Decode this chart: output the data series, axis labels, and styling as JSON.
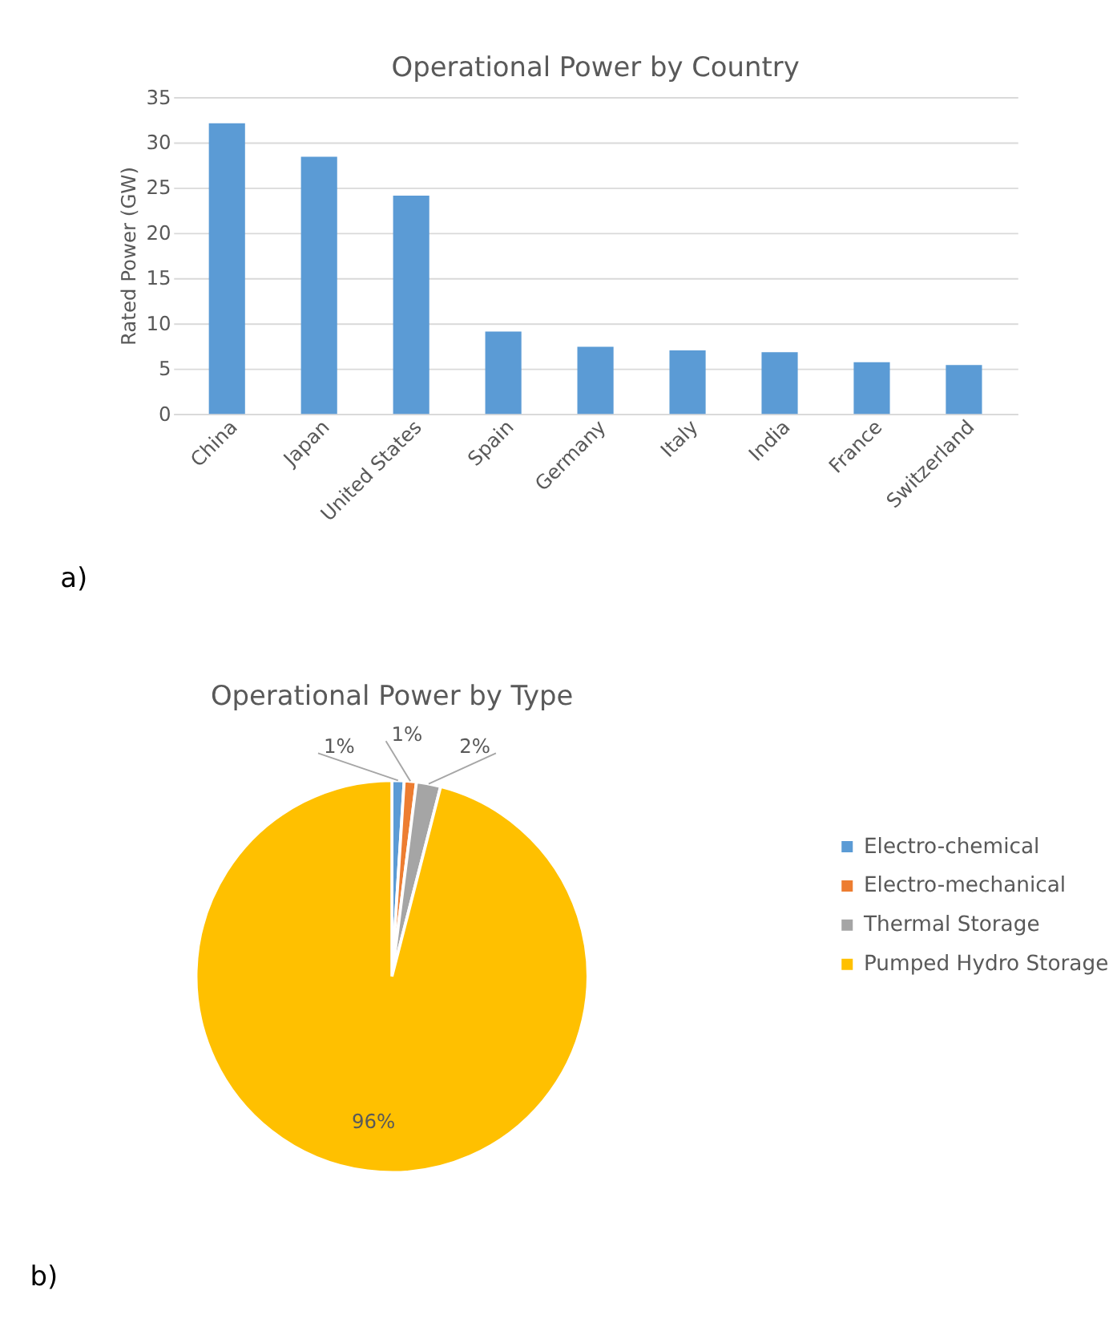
{
  "chart_data": [
    {
      "type": "bar",
      "title": "Operational Power by Country",
      "ylabel": "Rated Power (GW)",
      "categories": [
        "China",
        "Japan",
        "United States",
        "Spain",
        "Germany",
        "Italy",
        "India",
        "France",
        "Switzerland"
      ],
      "values": [
        32.1,
        28.4,
        24.1,
        9.1,
        7.4,
        7.0,
        6.8,
        5.7,
        5.4
      ],
      "color": "#5b9bd5",
      "ylim": [
        0,
        35
      ],
      "yticks": [
        0,
        5,
        10,
        15,
        20,
        25,
        30,
        35
      ],
      "grid": "y",
      "annotations": [
        "a)"
      ]
    },
    {
      "type": "pie",
      "title": "Operational Power by Type",
      "categories": [
        "Electro-chemical",
        "Electro-mechanical",
        "Thermal Storage",
        "Pumped Hydro Storage"
      ],
      "values": [
        1,
        1,
        2,
        96
      ],
      "colors": [
        "#5b9bd5",
        "#ed7d31",
        "#a5a5a5",
        "#ffc000"
      ],
      "value_labels": [
        "1%",
        "1%",
        "2%",
        "96%"
      ],
      "legend": "right",
      "annotations": [
        "b)"
      ]
    }
  ]
}
